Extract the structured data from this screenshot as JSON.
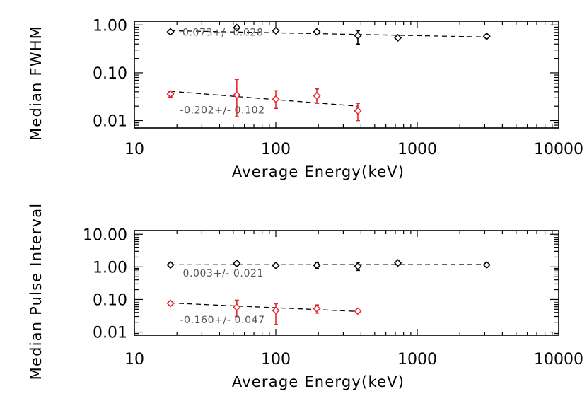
{
  "colors": {
    "black_series": "#000000",
    "red_series": "#e8252b"
  },
  "chart_data": [
    {
      "type": "scatter",
      "xscale": "log",
      "yscale": "log",
      "xlim": [
        10,
        10000
      ],
      "ylim": [
        0.007,
        1.2
      ],
      "xlabel": "Average Energy(keV)",
      "ylabel": "Median FWHM",
      "xticks": [
        10,
        100,
        1000,
        10000
      ],
      "xtick_labels": [
        "10",
        "100",
        "1000",
        "10000"
      ],
      "yticks": [
        0.01,
        0.1,
        1.0
      ],
      "ytick_labels": [
        "0.01",
        "0.10",
        "1.00"
      ],
      "series": [
        {
          "name": "black",
          "color": "#000000",
          "points": [
            {
              "x": 18,
              "y": 0.72,
              "ylo": 0.66,
              "yhi": 0.78
            },
            {
              "x": 53,
              "y": 0.88,
              "ylo": 0.8,
              "yhi": 0.96
            },
            {
              "x": 100,
              "y": 0.76,
              "ylo": 0.7,
              "yhi": 0.82
            },
            {
              "x": 195,
              "y": 0.72,
              "ylo": 0.67,
              "yhi": 0.77
            },
            {
              "x": 380,
              "y": 0.6,
              "ylo": 0.4,
              "yhi": 0.76
            },
            {
              "x": 730,
              "y": 0.54,
              "ylo": 0.5,
              "yhi": 0.58
            },
            {
              "x": 3100,
              "y": 0.58,
              "ylo": 0.54,
              "yhi": 0.62
            }
          ],
          "fit": {
            "x": [
              18,
              3100
            ],
            "y": [
              0.76,
              0.56
            ]
          },
          "annotation": "-0.073+/- 0.028",
          "annotation_anchor": {
            "x": 20.5,
            "y": 0.6
          }
        },
        {
          "name": "red",
          "color": "#e8252b",
          "points": [
            {
              "x": 18,
              "y": 0.036,
              "ylo": 0.031,
              "yhi": 0.041
            },
            {
              "x": 53,
              "y": 0.034,
              "ylo": 0.012,
              "yhi": 0.073
            },
            {
              "x": 100,
              "y": 0.028,
              "ylo": 0.018,
              "yhi": 0.042
            },
            {
              "x": 195,
              "y": 0.033,
              "ylo": 0.023,
              "yhi": 0.046
            },
            {
              "x": 380,
              "y": 0.016,
              "ylo": 0.01,
              "yhi": 0.023
            }
          ],
          "fit": {
            "x": [
              18,
              380
            ],
            "y": [
              0.041,
              0.02
            ]
          },
          "annotation": "-0.202+/- 0.102",
          "annotation_anchor": {
            "x": 21,
            "y": 0.014
          }
        }
      ]
    },
    {
      "type": "scatter",
      "xscale": "log",
      "yscale": "log",
      "xlim": [
        10,
        10000
      ],
      "ylim": [
        0.008,
        13
      ],
      "xlabel": "Average Energy(keV)",
      "ylabel": "Median Pulse Interval",
      "xticks": [
        10,
        100,
        1000,
        10000
      ],
      "xtick_labels": [
        "10",
        "100",
        "1000",
        "10000"
      ],
      "yticks": [
        0.01,
        0.1,
        1.0,
        10.0
      ],
      "ytick_labels": [
        "0.01",
        "0.10",
        "1.00",
        "10.00"
      ],
      "series": [
        {
          "name": "black",
          "color": "#000000",
          "points": [
            {
              "x": 18,
              "y": 1.15,
              "ylo": 1.0,
              "yhi": 1.3
            },
            {
              "x": 53,
              "y": 1.28,
              "ylo": 1.1,
              "yhi": 1.45
            },
            {
              "x": 100,
              "y": 1.1,
              "ylo": 0.98,
              "yhi": 1.22
            },
            {
              "x": 195,
              "y": 1.12,
              "ylo": 0.9,
              "yhi": 1.35
            },
            {
              "x": 380,
              "y": 1.05,
              "ylo": 0.78,
              "yhi": 1.38
            },
            {
              "x": 730,
              "y": 1.32,
              "ylo": 1.15,
              "yhi": 1.5
            },
            {
              "x": 3100,
              "y": 1.15,
              "ylo": 1.02,
              "yhi": 1.28
            }
          ],
          "fit": {
            "x": [
              18,
              3100
            ],
            "y": [
              1.16,
              1.18
            ]
          },
          "annotation": "0.003+/- 0.021",
          "annotation_anchor": {
            "x": 22,
            "y": 0.5
          }
        },
        {
          "name": "red",
          "color": "#e8252b",
          "points": [
            {
              "x": 18,
              "y": 0.076,
              "ylo": 0.068,
              "yhi": 0.084
            },
            {
              "x": 53,
              "y": 0.058,
              "ylo": 0.03,
              "yhi": 0.095
            },
            {
              "x": 100,
              "y": 0.046,
              "ylo": 0.017,
              "yhi": 0.074
            },
            {
              "x": 195,
              "y": 0.052,
              "ylo": 0.038,
              "yhi": 0.068
            },
            {
              "x": 380,
              "y": 0.044,
              "ylo": 0.04,
              "yhi": 0.048
            }
          ],
          "fit": {
            "x": [
              18,
              380
            ],
            "y": [
              0.078,
              0.043
            ]
          },
          "annotation": "-0.160+/- 0.047",
          "annotation_anchor": {
            "x": 21,
            "y": 0.0185
          }
        }
      ]
    }
  ]
}
